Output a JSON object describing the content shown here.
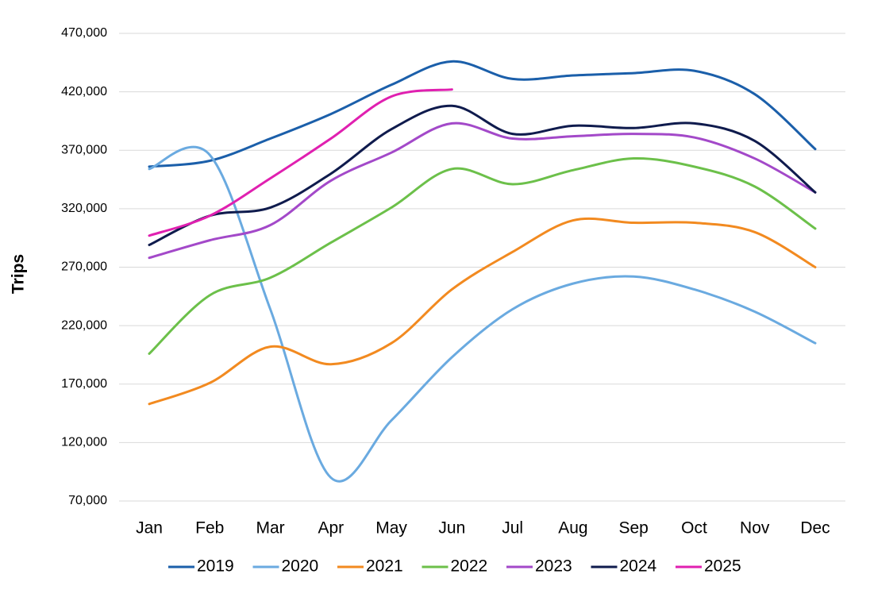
{
  "chart_data": {
    "type": "line",
    "y_label": "Trips",
    "categories": [
      "Jan",
      "Feb",
      "Mar",
      "Apr",
      "May",
      "Jun",
      "Jul",
      "Aug",
      "Sep",
      "Oct",
      "Nov",
      "Dec"
    ],
    "series": [
      {
        "name": "2019",
        "color": "#1b5faa",
        "values": [
          356000,
          361000,
          380000,
          401000,
          426000,
          446000,
          431000,
          434000,
          436000,
          438000,
          418000,
          371000
        ]
      },
      {
        "name": "2020",
        "color": "#6aaae0",
        "values": [
          354000,
          366000,
          234000,
          90000,
          139000,
          193000,
          234000,
          256000,
          262000,
          251000,
          232000,
          205000
        ]
      },
      {
        "name": "2021",
        "color": "#f28a20",
        "values": [
          153000,
          171000,
          202000,
          187000,
          205000,
          251000,
          283000,
          310000,
          308000,
          308000,
          300000,
          270000
        ]
      },
      {
        "name": "2022",
        "color": "#6cc04a",
        "values": [
          196000,
          246000,
          261000,
          291000,
          321000,
          354000,
          341000,
          353000,
          363000,
          356000,
          339000,
          303000
        ]
      },
      {
        "name": "2023",
        "color": "#a349c9",
        "values": [
          278000,
          293000,
          306000,
          344000,
          368000,
          393000,
          380000,
          382000,
          384000,
          381000,
          363000,
          334000
        ]
      },
      {
        "name": "2024",
        "color": "#0f1b4d",
        "values": [
          289000,
          314000,
          321000,
          350000,
          388000,
          408000,
          384000,
          391000,
          389000,
          393000,
          378000,
          334000
        ]
      },
      {
        "name": "2025",
        "color": "#e020b0",
        "values": [
          297000,
          314000,
          346000,
          380000,
          416000,
          422000,
          null,
          null,
          null,
          null,
          null,
          null
        ]
      }
    ],
    "ylim": [
      70000,
      470000
    ],
    "yticks": [
      {
        "value": 70000,
        "label": "70,000"
      },
      {
        "value": 120000,
        "label": "120,000"
      },
      {
        "value": 170000,
        "label": "170,000"
      },
      {
        "value": 220000,
        "label": "220,000"
      },
      {
        "value": 270000,
        "label": "270,000"
      },
      {
        "value": 320000,
        "label": "320,000"
      },
      {
        "value": 370000,
        "label": "370,000"
      },
      {
        "value": 420000,
        "label": "420,000"
      },
      {
        "value": 470000,
        "label": "470,000"
      }
    ],
    "grid": true,
    "legend": "bottom"
  }
}
